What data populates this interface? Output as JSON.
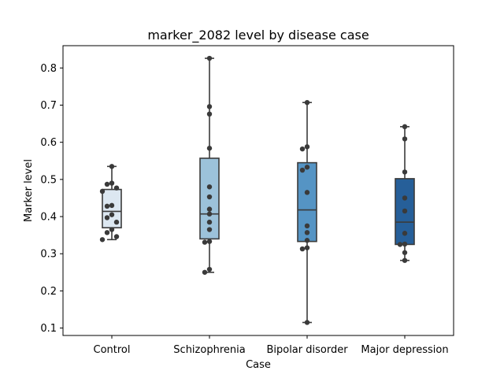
{
  "chart_data": {
    "type": "boxplot",
    "title": "marker_2082 level by disease case",
    "xlabel": "Case",
    "ylabel": "Marker level",
    "ylim": [
      0.08,
      0.86
    ],
    "yticks": [
      0.1,
      0.2,
      0.3,
      0.4,
      0.5,
      0.6,
      0.7,
      0.8
    ],
    "categories": [
      "Control",
      "Schizophrenia",
      "Bipolar disorder",
      "Major depression"
    ],
    "colors": [
      "#dce7f1",
      "#9cc2da",
      "#5594c4",
      "#265f99"
    ],
    "point_color": "#3a3a3a",
    "grid": false,
    "boxes": [
      {
        "min": 0.338,
        "q1": 0.37,
        "median": 0.414,
        "q3": 0.473,
        "max": 0.535
      },
      {
        "min": 0.25,
        "q1": 0.34,
        "median": 0.407,
        "q3": 0.557,
        "max": 0.826
      },
      {
        "min": 0.115,
        "q1": 0.333,
        "median": 0.418,
        "q3": 0.545,
        "max": 0.707
      },
      {
        "min": 0.282,
        "q1": 0.325,
        "median": 0.385,
        "q3": 0.502,
        "max": 0.642
      }
    ],
    "points": [
      [
        0.535,
        0.49,
        0.487,
        0.477,
        0.468,
        0.43,
        0.428,
        0.405,
        0.397,
        0.385,
        0.365,
        0.357,
        0.346,
        0.338
      ],
      [
        0.826,
        0.696,
        0.676,
        0.584,
        0.48,
        0.453,
        0.42,
        0.407,
        0.385,
        0.365,
        0.333,
        0.331,
        0.258,
        0.25
      ],
      [
        0.707,
        0.588,
        0.582,
        0.533,
        0.525,
        0.465,
        0.375,
        0.357,
        0.336,
        0.316,
        0.313,
        0.115
      ],
      [
        0.642,
        0.609,
        0.52,
        0.45,
        0.415,
        0.355,
        0.325,
        0.326,
        0.303,
        0.282
      ]
    ]
  }
}
